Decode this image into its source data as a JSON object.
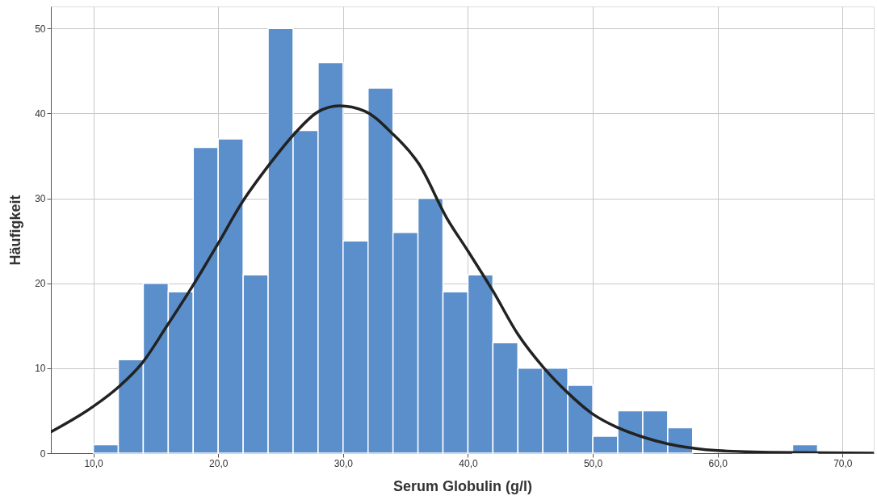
{
  "chart_data": {
    "type": "histogram",
    "xlabel": "Serum Globulin (g/l)",
    "ylabel": "Häufigkeit",
    "bins": [
      10,
      12,
      14,
      16,
      18,
      20,
      22,
      24,
      26,
      28,
      30,
      32,
      34,
      36,
      38,
      40,
      42,
      44,
      46,
      48,
      50,
      52,
      54,
      56,
      58,
      60,
      62,
      64,
      66,
      68
    ],
    "values": [
      1,
      11,
      20,
      19,
      36,
      37,
      21,
      50,
      38,
      46,
      25,
      43,
      26,
      30,
      19,
      21,
      13,
      10,
      10,
      8,
      2,
      5,
      5,
      3,
      0,
      0,
      0,
      0,
      1
    ],
    "color": "#5b8fcb",
    "series": [
      {
        "type": "line",
        "color": "#222222",
        "x": [
          6.6,
          10,
          12.1,
          13.9,
          15.9,
          18,
          20,
          21.9,
          24.1,
          26.1,
          28,
          29.7,
          31.7,
          33.9,
          36.1,
          38.3,
          40,
          42,
          44,
          46.1,
          48,
          50,
          52,
          54,
          56,
          58,
          60,
          64.3,
          72.5
        ],
        "values": [
          2.5,
          5.5,
          7.9,
          10.6,
          15,
          19.8,
          24.7,
          29.5,
          34,
          37.6,
          40.2,
          40.9,
          40.3,
          37.7,
          34,
          27.7,
          23.8,
          19.1,
          14,
          10,
          7.1,
          4.6,
          3,
          1.9,
          1.1,
          0.6,
          0.3,
          0.1,
          0
        ]
      }
    ],
    "xlim": [
      6.6,
      72.5
    ],
    "ylim": [
      0,
      52.6
    ],
    "xticks": [
      {
        "value": 10,
        "label": "10,0"
      },
      {
        "value": 20,
        "label": "20,0"
      },
      {
        "value": 30,
        "label": "30,0"
      },
      {
        "value": 40,
        "label": "40,0"
      },
      {
        "value": 50,
        "label": "50,0"
      },
      {
        "value": 60,
        "label": "60,0"
      },
      {
        "value": 70,
        "label": "70,0"
      }
    ],
    "yticks": [
      0,
      10,
      20,
      30,
      40,
      50
    ],
    "grid": true,
    "marker": "none",
    "line_style": "solid"
  }
}
